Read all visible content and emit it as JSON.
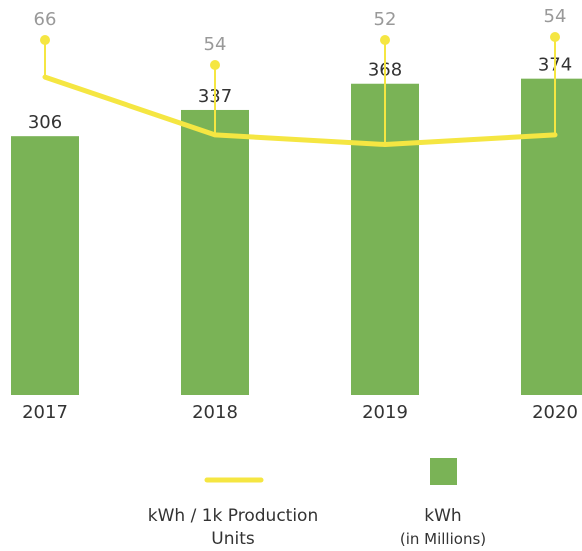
{
  "chart_data": {
    "type": "bar-line",
    "categories": [
      "2017",
      "2018",
      "2019",
      "2020"
    ],
    "series": [
      {
        "name": "kWh",
        "unit": "(in Millions)",
        "type": "bar",
        "color": "#7ab356",
        "values": [
          306,
          337,
          368,
          374
        ]
      },
      {
        "name": "kWh / 1k Production Units",
        "type": "line",
        "axis": "y2",
        "color": "#f5e642",
        "values": [
          66,
          54,
          52,
          54
        ]
      }
    ],
    "ylim": [
      0,
      467
    ],
    "y2lim": [
      0,
      82
    ]
  }
}
